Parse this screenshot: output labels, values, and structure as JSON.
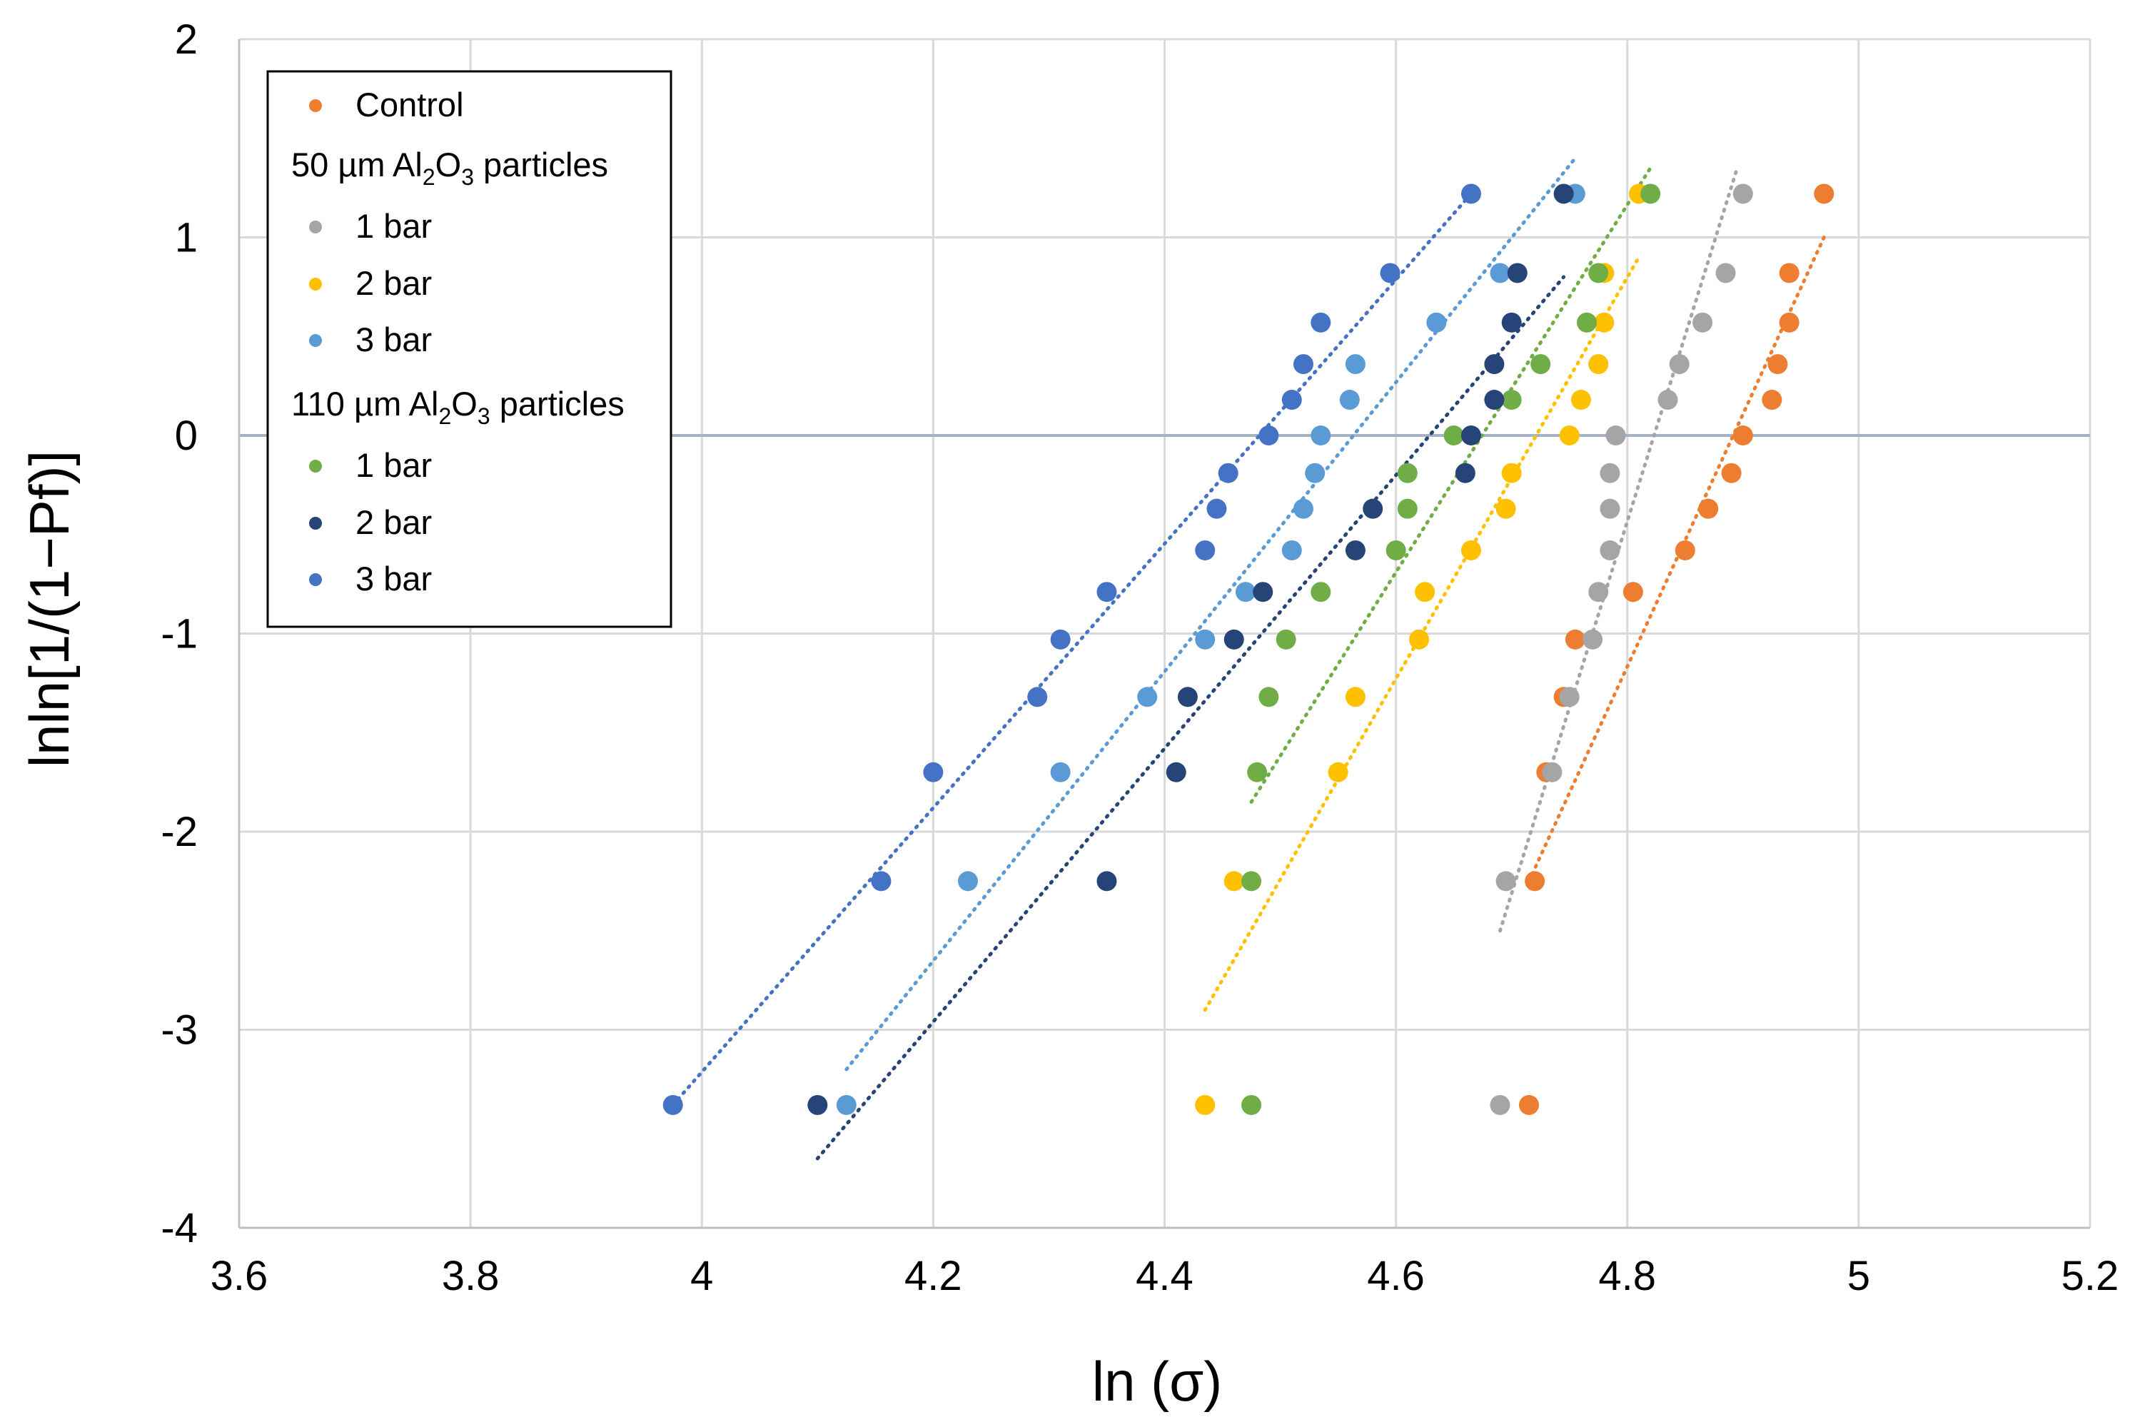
{
  "chart_data": {
    "type": "scatter",
    "title": "",
    "xlabel": "ln (σ)",
    "ylabel": "lnln[1/(1−Pf)]",
    "xlim": [
      3.6,
      5.2
    ],
    "ylim": [
      -4,
      2
    ],
    "xticks": [
      "3.6",
      "3.8",
      "4",
      "4.2",
      "4.4",
      "4.6",
      "4.8",
      "5",
      "5.2"
    ],
    "yticks": [
      "2",
      "1",
      "0",
      "-1",
      "-2",
      "-3",
      "-4"
    ],
    "grid": true,
    "legend_position": "top-left",
    "legend": {
      "group1": {
        "pre": "50 µm Al",
        "sub1": "2",
        "mid": "O",
        "sub2": "3",
        "post": " particles"
      },
      "group2": {
        "pre": "110 µm Al",
        "sub1": "2",
        "mid": "O",
        "sub2": "3",
        "post": " particles"
      }
    },
    "series": [
      {
        "name": "Control",
        "color": "#ED7D31",
        "points": [
          [
            4.715,
            -3.38
          ],
          [
            4.72,
            -2.25
          ],
          [
            4.73,
            -1.7
          ],
          [
            4.745,
            -1.32
          ],
          [
            4.755,
            -1.03
          ],
          [
            4.805,
            -0.79
          ],
          [
            4.85,
            -0.58
          ],
          [
            4.87,
            -0.37
          ],
          [
            4.89,
            -0.19
          ],
          [
            4.9,
            0
          ],
          [
            4.925,
            0.18
          ],
          [
            4.93,
            0.36
          ],
          [
            4.94,
            0.57
          ],
          [
            4.94,
            0.82
          ],
          [
            4.97,
            1.22
          ]
        ],
        "trend": [
          [
            4.715,
            -2.25
          ],
          [
            4.97,
            1.0
          ]
        ]
      },
      {
        "name": "1 bar",
        "color": "#A5A5A5",
        "points": [
          [
            4.69,
            -3.38
          ],
          [
            4.695,
            -2.25
          ],
          [
            4.735,
            -1.7
          ],
          [
            4.75,
            -1.32
          ],
          [
            4.77,
            -1.03
          ],
          [
            4.775,
            -0.79
          ],
          [
            4.785,
            -0.58
          ],
          [
            4.785,
            -0.37
          ],
          [
            4.785,
            -0.19
          ],
          [
            4.79,
            0
          ],
          [
            4.835,
            0.18
          ],
          [
            4.845,
            0.36
          ],
          [
            4.865,
            0.57
          ],
          [
            4.885,
            0.82
          ],
          [
            4.9,
            1.22
          ]
        ],
        "trend": [
          [
            4.69,
            -2.5
          ],
          [
            4.895,
            1.35
          ]
        ]
      },
      {
        "name": "2 bar",
        "color": "#FFC000",
        "points": [
          [
            4.435,
            -3.38
          ],
          [
            4.46,
            -2.25
          ],
          [
            4.55,
            -1.7
          ],
          [
            4.565,
            -1.32
          ],
          [
            4.62,
            -1.03
          ],
          [
            4.625,
            -0.79
          ],
          [
            4.665,
            -0.58
          ],
          [
            4.695,
            -0.37
          ],
          [
            4.7,
            -0.19
          ],
          [
            4.75,
            0
          ],
          [
            4.76,
            0.18
          ],
          [
            4.775,
            0.36
          ],
          [
            4.78,
            0.57
          ],
          [
            4.78,
            0.82
          ],
          [
            4.81,
            1.22
          ]
        ],
        "trend": [
          [
            4.435,
            -2.9
          ],
          [
            4.81,
            0.9
          ]
        ]
      },
      {
        "name": "3 bar",
        "color": "#5B9BD5",
        "points": [
          [
            4.125,
            -3.38
          ],
          [
            4.23,
            -2.25
          ],
          [
            4.31,
            -1.7
          ],
          [
            4.385,
            -1.32
          ],
          [
            4.435,
            -1.03
          ],
          [
            4.47,
            -0.79
          ],
          [
            4.51,
            -0.58
          ],
          [
            4.52,
            -0.37
          ],
          [
            4.53,
            -0.19
          ],
          [
            4.535,
            0
          ],
          [
            4.56,
            0.18
          ],
          [
            4.565,
            0.36
          ],
          [
            4.635,
            0.57
          ],
          [
            4.69,
            0.82
          ],
          [
            4.755,
            1.22
          ]
        ],
        "trend": [
          [
            4.125,
            -3.2
          ],
          [
            4.755,
            1.4
          ]
        ]
      },
      {
        "name": "1 bar",
        "color": "#70AD47",
        "points": [
          [
            4.475,
            -3.38
          ],
          [
            4.475,
            -2.25
          ],
          [
            4.48,
            -1.7
          ],
          [
            4.49,
            -1.32
          ],
          [
            4.505,
            -1.03
          ],
          [
            4.535,
            -0.79
          ],
          [
            4.6,
            -0.58
          ],
          [
            4.61,
            -0.37
          ],
          [
            4.61,
            -0.19
          ],
          [
            4.65,
            0
          ],
          [
            4.7,
            0.18
          ],
          [
            4.725,
            0.36
          ],
          [
            4.765,
            0.57
          ],
          [
            4.775,
            0.82
          ],
          [
            4.82,
            1.22
          ]
        ],
        "trend": [
          [
            4.475,
            -1.85
          ],
          [
            4.82,
            1.35
          ]
        ]
      },
      {
        "name": "2 bar",
        "color": "#264478",
        "points": [
          [
            4.1,
            -3.38
          ],
          [
            4.35,
            -2.25
          ],
          [
            4.41,
            -1.7
          ],
          [
            4.42,
            -1.32
          ],
          [
            4.46,
            -1.03
          ],
          [
            4.485,
            -0.79
          ],
          [
            4.565,
            -0.58
          ],
          [
            4.58,
            -0.37
          ],
          [
            4.66,
            -0.19
          ],
          [
            4.665,
            0
          ],
          [
            4.685,
            0.18
          ],
          [
            4.685,
            0.36
          ],
          [
            4.7,
            0.57
          ],
          [
            4.705,
            0.82
          ],
          [
            4.745,
            1.22
          ]
        ],
        "trend": [
          [
            4.1,
            -3.65
          ],
          [
            4.745,
            0.8
          ]
        ]
      },
      {
        "name": "3 bar",
        "color": "#4472C4",
        "points": [
          [
            3.975,
            -3.38
          ],
          [
            4.155,
            -2.25
          ],
          [
            4.2,
            -1.7
          ],
          [
            4.29,
            -1.32
          ],
          [
            4.31,
            -1.03
          ],
          [
            4.35,
            -0.79
          ],
          [
            4.435,
            -0.58
          ],
          [
            4.445,
            -0.37
          ],
          [
            4.455,
            -0.19
          ],
          [
            4.49,
            0
          ],
          [
            4.51,
            0.18
          ],
          [
            4.52,
            0.36
          ],
          [
            4.535,
            0.57
          ],
          [
            4.595,
            0.82
          ],
          [
            4.665,
            1.22
          ]
        ],
        "trend": [
          [
            3.975,
            -3.38
          ],
          [
            4.665,
            1.22
          ]
        ]
      }
    ]
  }
}
